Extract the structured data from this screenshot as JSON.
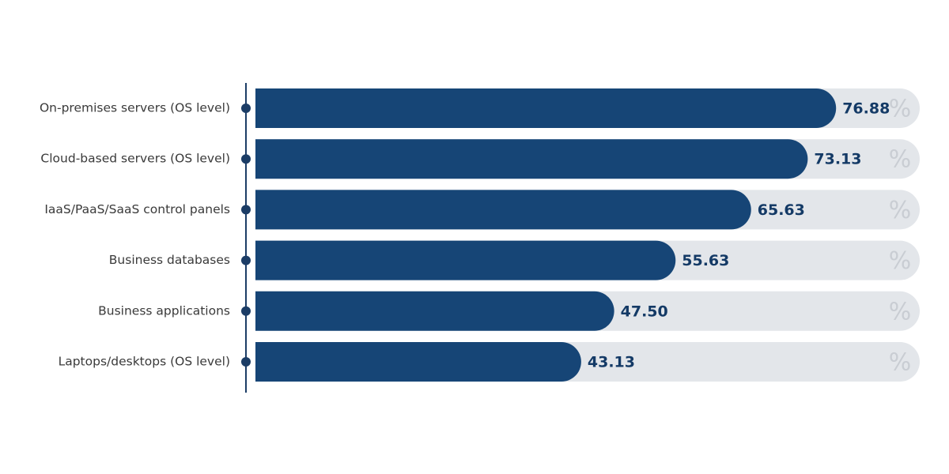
{
  "chart_data": {
    "type": "hbar",
    "categories": [
      "On-premises servers (OS level)",
      "Cloud-based servers (OS level)",
      "IaaS/PaaS/SaaS control panels",
      "Business databases",
      "Business applications",
      "Laptops/desktops (OS level)"
    ],
    "values": [
      76.88,
      73.13,
      65.63,
      55.63,
      47.5,
      43.13
    ],
    "value_labels": [
      "76.88",
      "73.13",
      "65.63",
      "55.63",
      "47.50",
      "43.13"
    ],
    "value_suffix": "%",
    "color": "#164576"
  }
}
